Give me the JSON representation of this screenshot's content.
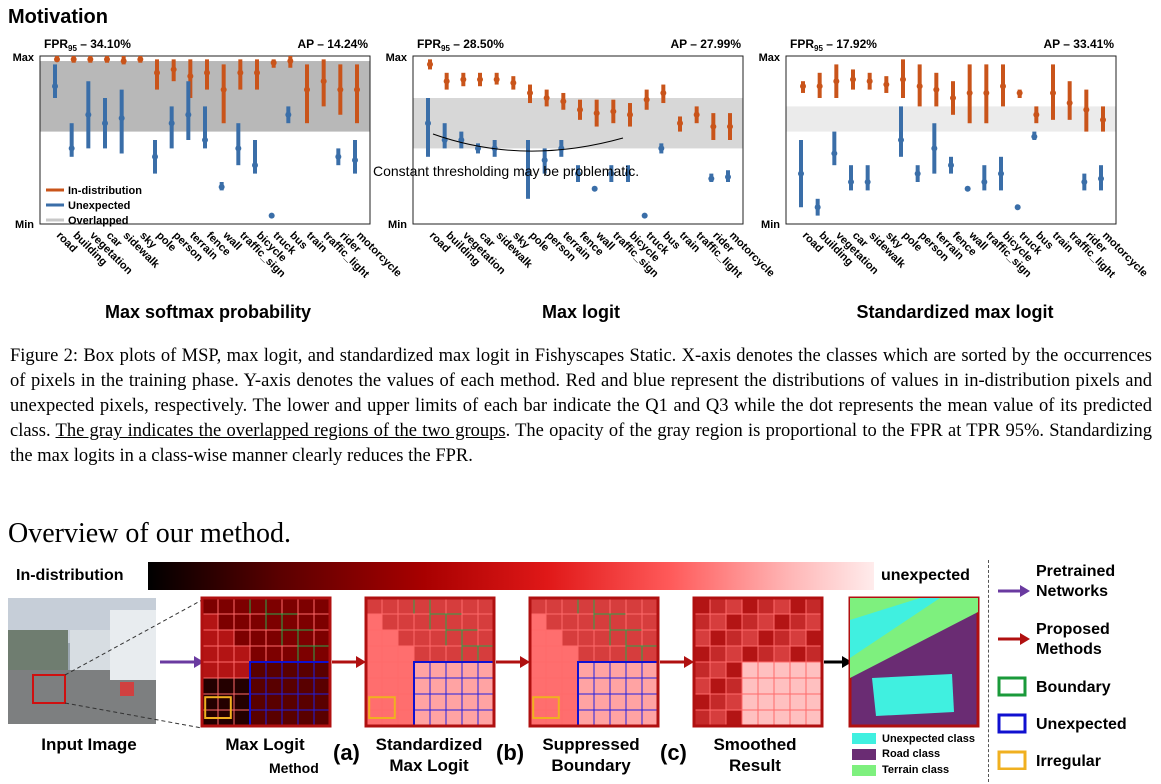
{
  "motivation": {
    "heading": "Motivation"
  },
  "y_axis": {
    "max": "Max",
    "min": "Min"
  },
  "panels": [
    {
      "title": "Max softmax probability",
      "fpr": "– 34.10%",
      "ap": "AP – 14.24%"
    },
    {
      "title": "Max logit",
      "fpr": "– 28.50%",
      "ap": "AP – 27.99%",
      "annotation": "Constant thresholding may be problematic."
    },
    {
      "title": "Standardized max logit",
      "fpr": "– 17.92%",
      "ap": "AP – 33.41%"
    }
  ],
  "fpr_prefix": "FPR",
  "fpr_sub": "95",
  "plot_legend": {
    "in_dist": "In-distribution",
    "unexpected": "Unexpected",
    "overlapped": "Overlapped"
  },
  "colors": {
    "in_dist": "#c9541a",
    "unexpected": "#3a6ea8",
    "overlap": "#9a9a9a"
  },
  "chart_data": [
    {
      "type": "box",
      "title": "Max softmax probability",
      "categories": [
        "road",
        "building",
        "vegetation",
        "car",
        "sidewalk",
        "sky",
        "pole",
        "person",
        "terrain",
        "fence",
        "wall",
        "traffic_sign",
        "bicycle",
        "truck",
        "bus",
        "train",
        "traffic_light",
        "rider",
        "motorcycle"
      ],
      "series": [
        {
          "name": "In-distribution",
          "q1": [
            0.97,
            0.96,
            0.96,
            0.96,
            0.95,
            0.96,
            0.8,
            0.85,
            0.75,
            0.8,
            0.6,
            0.8,
            0.8,
            0.93,
            0.93,
            0.6,
            0.7,
            0.65,
            0.6
          ],
          "q3": [
            1.0,
            1.0,
            1.0,
            1.0,
            1.0,
            1.0,
            0.98,
            0.98,
            0.98,
            0.98,
            0.95,
            0.98,
            0.98,
            0.98,
            1.0,
            0.95,
            0.98,
            0.95,
            0.95
          ],
          "mean": [
            0.98,
            0.98,
            0.98,
            0.98,
            0.97,
            0.98,
            0.9,
            0.92,
            0.88,
            0.9,
            0.8,
            0.9,
            0.9,
            0.96,
            0.97,
            0.8,
            0.85,
            0.8,
            0.8
          ]
        },
        {
          "name": "Unexpected",
          "q1": [
            0.75,
            0.4,
            0.45,
            0.45,
            0.42,
            null,
            0.3,
            0.45,
            0.5,
            0.45,
            0.2,
            0.35,
            0.3,
            0.05,
            0.6,
            null,
            null,
            0.35,
            0.3
          ],
          "q3": [
            0.95,
            0.6,
            0.85,
            0.75,
            0.8,
            null,
            0.5,
            0.7,
            0.85,
            0.7,
            0.25,
            0.6,
            0.5,
            0.05,
            0.7,
            null,
            null,
            0.45,
            0.5
          ],
          "mean": [
            0.82,
            0.45,
            0.65,
            0.6,
            0.63,
            null,
            0.4,
            0.6,
            0.65,
            0.5,
            0.22,
            0.45,
            0.35,
            0.05,
            0.65,
            null,
            null,
            0.4,
            0.38
          ]
        }
      ],
      "overlap": [
        0.55,
        0.97
      ],
      "ylim": [
        0,
        1
      ]
    },
    {
      "type": "box",
      "title": "Max logit",
      "categories": [
        "road",
        "building",
        "vegetation",
        "car",
        "sidewalk",
        "sky",
        "pole",
        "person",
        "terrain",
        "fence",
        "wall",
        "traffic_sign",
        "bicycle",
        "truck",
        "bus",
        "train",
        "traffic_light",
        "rider",
        "motorcycle"
      ],
      "series": [
        {
          "name": "In-distribution",
          "q1": [
            0.92,
            0.8,
            0.82,
            0.82,
            0.83,
            0.8,
            0.72,
            0.7,
            0.68,
            0.62,
            0.58,
            0.6,
            0.58,
            0.68,
            0.72,
            0.55,
            0.6,
            0.5,
            0.5
          ],
          "q3": [
            0.98,
            0.9,
            0.9,
            0.9,
            0.9,
            0.88,
            0.83,
            0.8,
            0.78,
            0.74,
            0.74,
            0.74,
            0.72,
            0.8,
            0.83,
            0.64,
            0.7,
            0.66,
            0.66
          ],
          "mean": [
            0.95,
            0.85,
            0.86,
            0.86,
            0.86,
            0.84,
            0.78,
            0.75,
            0.73,
            0.68,
            0.66,
            0.67,
            0.65,
            0.74,
            0.78,
            0.6,
            0.65,
            0.58,
            0.58
          ]
        },
        {
          "name": "Unexpected",
          "q1": [
            0.4,
            0.45,
            0.45,
            0.42,
            0.4,
            null,
            0.15,
            0.3,
            0.4,
            0.25,
            0.2,
            0.25,
            0.25,
            0.05,
            0.42,
            null,
            null,
            0.25,
            0.25
          ],
          "q3": [
            0.75,
            0.6,
            0.55,
            0.48,
            0.5,
            null,
            0.5,
            0.45,
            0.5,
            0.35,
            0.22,
            0.35,
            0.35,
            0.05,
            0.48,
            null,
            null,
            0.3,
            0.32
          ],
          "mean": [
            0.6,
            0.5,
            0.5,
            0.45,
            0.45,
            null,
            0.3,
            0.38,
            0.45,
            0.3,
            0.21,
            0.3,
            0.3,
            0.05,
            0.45,
            null,
            null,
            0.27,
            0.28
          ]
        }
      ],
      "overlap": [
        0.45,
        0.75
      ],
      "ylim": [
        0,
        1
      ]
    },
    {
      "type": "box",
      "title": "Standardized max logit",
      "categories": [
        "road",
        "building",
        "vegetation",
        "car",
        "sidewalk",
        "sky",
        "pole",
        "person",
        "terrain",
        "fence",
        "wall",
        "traffic_sign",
        "bicycle",
        "truck",
        "bus",
        "train",
        "traffic_light",
        "rider",
        "motorcycle"
      ],
      "series": [
        {
          "name": "In-distribution",
          "q1": [
            0.78,
            0.75,
            0.75,
            0.8,
            0.8,
            0.78,
            0.75,
            0.7,
            0.7,
            0.65,
            0.6,
            0.6,
            0.7,
            0.75,
            0.6,
            0.62,
            0.62,
            0.55,
            0.55
          ],
          "q3": [
            0.85,
            0.9,
            0.95,
            0.92,
            0.9,
            0.88,
            0.98,
            0.95,
            0.9,
            0.85,
            0.95,
            0.95,
            0.95,
            0.8,
            0.7,
            0.95,
            0.85,
            0.8,
            0.7
          ],
          "mean": [
            0.82,
            0.82,
            0.85,
            0.86,
            0.85,
            0.83,
            0.86,
            0.82,
            0.8,
            0.75,
            0.78,
            0.78,
            0.82,
            0.78,
            0.65,
            0.78,
            0.72,
            0.68,
            0.62
          ]
        },
        {
          "name": "Unexpected",
          "q1": [
            0.1,
            0.05,
            0.35,
            0.2,
            0.2,
            null,
            0.4,
            0.25,
            0.3,
            0.3,
            0.2,
            0.2,
            0.2,
            0.1,
            0.5,
            null,
            null,
            0.2,
            0.2
          ],
          "q3": [
            0.5,
            0.15,
            0.55,
            0.35,
            0.35,
            null,
            0.7,
            0.35,
            0.6,
            0.4,
            0.22,
            0.35,
            0.4,
            0.1,
            0.55,
            null,
            null,
            0.3,
            0.35
          ],
          "mean": [
            0.3,
            0.1,
            0.42,
            0.25,
            0.25,
            null,
            0.5,
            0.3,
            0.45,
            0.35,
            0.21,
            0.25,
            0.3,
            0.1,
            0.52,
            null,
            null,
            0.25,
            0.27
          ]
        }
      ],
      "overlap": [
        0.55,
        0.7
      ],
      "ylim": [
        0,
        1
      ]
    }
  ],
  "caption": {
    "part1": "Figure 2: Box plots of MSP, max logit, and standardized max logit in Fishyscapes Static. X-axis denotes the classes which are sorted by the occurrences of pixels in the training phase. Y-axis denotes the values of each method. Red and blue represent the distributions of values in in-distribution pixels and unexpected pixels, respectively. The lower and upper limits of each bar indicate the Q1 and Q3 while the dot represents the mean value of its predicted class. ",
    "underlined": "The gray indicates the overlapped regions of the two groups",
    "part2": ". The opacity of the gray region is proportional to the FPR at TPR 95%. Standardizing the max logits in a class-wise manner clearly reduces the FPR."
  },
  "overview": {
    "heading": "Overview of our method.",
    "gradient_left": "In-distribution",
    "gradient_right": "unexpected",
    "stages": [
      {
        "label": "Input Image"
      },
      {
        "label": "Max Logit"
      },
      {
        "label": "Standardized\nMax Logit"
      },
      {
        "label": "Suppressed\nBoundary"
      },
      {
        "label": "Smoothed\nResult"
      }
    ],
    "method_label": "Method",
    "step_labels": [
      "(a)",
      "(b)",
      "(c)"
    ],
    "segmentation_legend": [
      "Unexpected class",
      "Road class",
      "Terrain class"
    ],
    "segmentation_colors": [
      "#40f0e0",
      "#6a2c73",
      "#7ef07e"
    ],
    "right_legend": {
      "pretrained": "Pretrained\nNetworks",
      "proposed": "Proposed\nMethods",
      "boundary": "Boundary",
      "unexpected": "Unexpected",
      "irregular": "Irregular"
    }
  }
}
